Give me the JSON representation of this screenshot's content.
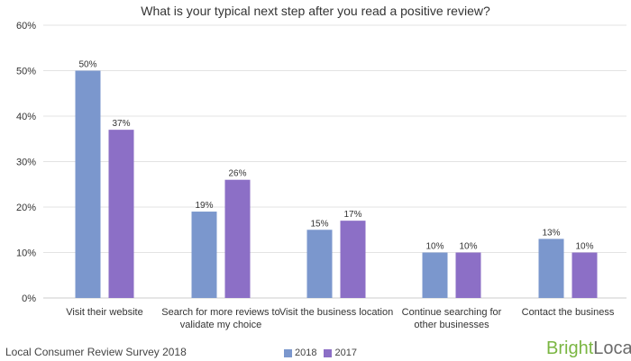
{
  "title": "What is your typical next step after you read a positive review?",
  "source": "Local Consumer Review Survey 2018",
  "logo": {
    "part1": "Bright",
    "part2": "Local"
  },
  "colors": {
    "series_2018": "#7b97cd",
    "series_2017": "#8c6fc6",
    "grid": "#e3e3e3",
    "axis": "#cccccc",
    "text": "#333333"
  },
  "chart_data": {
    "type": "bar",
    "title": "What is your typical next step after you read a positive review?",
    "categories": [
      [
        "Visit their website"
      ],
      [
        "Search for more reviews to",
        "validate my choice"
      ],
      [
        "Visit the business location"
      ],
      [
        "Continue searching for",
        "other businesses"
      ],
      [
        "Contact the business"
      ]
    ],
    "series": [
      {
        "name": "2018",
        "values": [
          50,
          19,
          15,
          10,
          13
        ],
        "labels": [
          "50%",
          "19%",
          "15%",
          "10%",
          "13%"
        ]
      },
      {
        "name": "2017",
        "values": [
          37,
          26,
          17,
          10,
          10
        ],
        "labels": [
          "37%",
          "26%",
          "17%",
          "10%",
          "10%"
        ]
      }
    ],
    "yticks": [
      "0%",
      "10%",
      "20%",
      "30%",
      "40%",
      "50%",
      "60%"
    ],
    "ylim": [
      0,
      60
    ],
    "grid": true,
    "legend_position": "bottom-center"
  }
}
